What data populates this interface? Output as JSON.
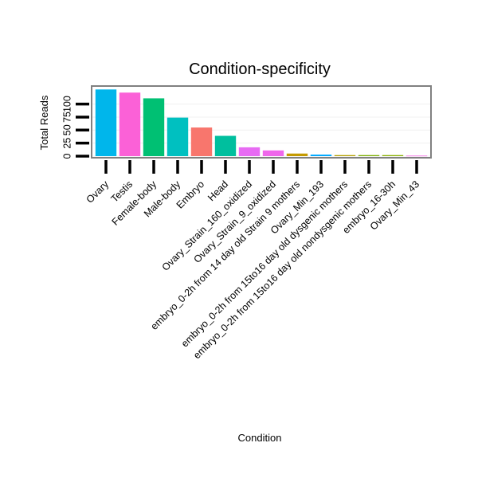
{
  "chart_data": {
    "type": "bar",
    "title": "Condition-specificity",
    "xlabel": "Condition",
    "ylabel": "Total Reads",
    "categories": [
      "Ovary",
      "Testis",
      "Female-body",
      "Male-body",
      "Embryo",
      "Head",
      "Ovary_Strain_160_oxidized",
      "Ovary_Strain_9_oxidized",
      "embryo_0-2h from 14 day old Strain 9 mothers",
      "Ovary_Min_193",
      "embryo_0-2h from 15to16 day old dysgenic mothers",
      "embryo_0-2h from 15to16 day old nondysgenic mothers",
      "embryo_16-30h",
      "Ovary_Min_43"
    ],
    "values": [
      128,
      122,
      111,
      74,
      55,
      39,
      17,
      11,
      5,
      3,
      2,
      2,
      2,
      1
    ],
    "colors": [
      "#00b6eb",
      "#fb61d7",
      "#00c073",
      "#00c0c0",
      "#f8766d",
      "#00bf9e",
      "#e76bf3",
      "#ef67eb",
      "#c49a00",
      "#00a9ff",
      "#b3a000",
      "#7cae00",
      "#8ab000",
      "#f365e6"
    ],
    "y_ticks": [
      "0",
      "25",
      "50",
      "75",
      "100"
    ],
    "ylim": [
      0,
      130
    ],
    "grid": true,
    "legend": "none"
  }
}
